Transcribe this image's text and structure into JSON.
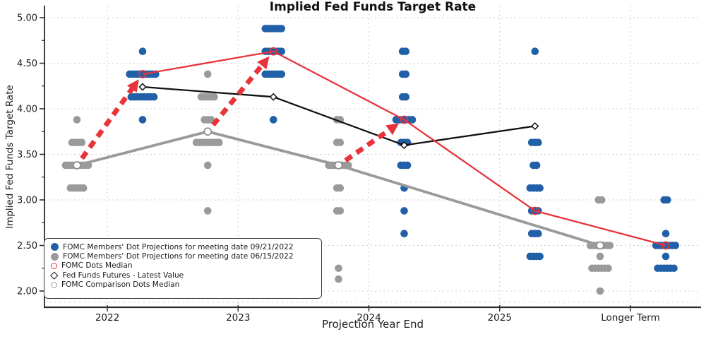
{
  "title": "Implied Fed Funds Target Rate",
  "x_axis": {
    "label": "Projection Year End",
    "categories": [
      "2022",
      "2023",
      "2024",
      "2025",
      "Longer Term"
    ]
  },
  "y_axis": {
    "label": "Implied Fed Funds Target Rate",
    "tick_labels": [
      "5.00",
      "4.50",
      "4.00",
      "3.50",
      "3.00",
      "2.50",
      "2.00"
    ]
  },
  "colors": {
    "blue": "#2160a8",
    "gray": "#9a9a9a",
    "red": "#e8333a",
    "black": "#111111",
    "grid": "#cdcdcd",
    "spine": "#2b2b2b",
    "text": "#1a1a1a"
  },
  "legend": [
    {
      "label": "FOMC Members' Dot Projections for meeting date 09/21/2022",
      "marker": "filled-circle",
      "color": "#2160a8"
    },
    {
      "label": "FOMC Members' Dot Projections for meeting date 06/15/2022",
      "marker": "filled-circle",
      "color": "#9a9a9a"
    },
    {
      "label": "FOMC Dots Median",
      "marker": "open-circle",
      "color": "#e8333a"
    },
    {
      "label": "Fed Funds Futures - Latest Value",
      "marker": "open-diamond",
      "color": "#111111"
    },
    {
      "label": "FOMC Comparison Dots Median",
      "marker": "open-circle",
      "color": "#9a9a9a"
    }
  ],
  "chart_data": {
    "type": "scatter",
    "title": "Implied Fed Funds Target Rate",
    "xlabel": "Projection Year End",
    "ylabel": "Implied Fed Funds Target Rate",
    "categories": [
      "2022",
      "2023",
      "2024",
      "2025",
      "Longer Term"
    ],
    "ylim": [
      1.82,
      5.12
    ],
    "yticks": [
      5.0,
      4.5,
      4.0,
      3.5,
      3.0,
      2.5,
      2.0
    ],
    "yticks_minor": [
      4.75,
      4.25,
      3.75,
      3.25,
      2.75,
      2.25
    ],
    "grid": true,
    "legend_position": "lower-left",
    "series": [
      {
        "name": "FOMC Members' Dot Projections for meeting date 09/21/2022",
        "type": "dot-cluster",
        "color": "#2160a8",
        "dx": 50,
        "clusters": {
          "2022": [
            [
              4.63,
              1
            ],
            [
              4.38,
              9
            ],
            [
              4.13,
              8
            ],
            [
              3.88,
              1
            ]
          ],
          "2023": [
            [
              4.88,
              6
            ],
            [
              4.63,
              6
            ],
            [
              4.38,
              6
            ],
            [
              3.88,
              1
            ]
          ],
          "2024": [
            [
              4.63,
              2
            ],
            [
              4.38,
              2
            ],
            [
              4.13,
              2
            ],
            [
              3.88,
              6
            ],
            [
              3.63,
              3
            ],
            [
              3.38,
              3
            ],
            [
              3.13,
              1
            ],
            [
              2.88,
              1
            ],
            [
              2.63,
              1
            ]
          ],
          "2025": [
            [
              4.63,
              1
            ],
            [
              3.63,
              3
            ],
            [
              3.38,
              2
            ],
            [
              3.13,
              4
            ],
            [
              2.88,
              3
            ],
            [
              2.63,
              3
            ],
            [
              2.38,
              4
            ]
          ],
          "Longer Term": [
            [
              3.0,
              2
            ],
            [
              2.63,
              1
            ],
            [
              2.5,
              7
            ],
            [
              2.38,
              1
            ],
            [
              2.25,
              6
            ]
          ]
        }
      },
      {
        "name": "FOMC Members' Dot Projections for meeting date 06/15/2022",
        "type": "dot-cluster",
        "color": "#9a9a9a",
        "dx": -43,
        "clusters": {
          "2022": [
            [
              3.88,
              1
            ],
            [
              3.63,
              4
            ],
            [
              3.38,
              8
            ],
            [
              3.13,
              5
            ]
          ],
          "2023": [
            [
              4.38,
              1
            ],
            [
              4.13,
              5
            ],
            [
              3.88,
              3
            ],
            [
              3.63,
              8
            ],
            [
              3.38,
              1
            ],
            [
              2.88,
              1
            ]
          ],
          "2024": [
            [
              3.88,
              2
            ],
            [
              3.63,
              2
            ],
            [
              3.38,
              7
            ],
            [
              3.13,
              2
            ],
            [
              2.88,
              2
            ],
            [
              2.25,
              1
            ],
            [
              2.13,
              1
            ]
          ],
          "Longer Term": [
            [
              3.0,
              2
            ],
            [
              2.5,
              7
            ],
            [
              2.38,
              1
            ],
            [
              2.25,
              6
            ],
            [
              2.0,
              1
            ]
          ]
        }
      },
      {
        "name": "FOMC Dots Median",
        "type": "line",
        "color": "#e8333a",
        "marker": "open-circle",
        "dx": 50,
        "width": 2.3,
        "points": [
          [
            "2022",
            4.38
          ],
          [
            "2023",
            4.63
          ],
          [
            "2024",
            3.88
          ],
          [
            "2025",
            2.88
          ],
          [
            "Longer Term",
            2.5
          ]
        ]
      },
      {
        "name": "Fed Funds Futures - Latest Value",
        "type": "line",
        "color": "#111111",
        "marker": "open-diamond",
        "dx": 50,
        "width": 2.3,
        "points": [
          [
            "2022",
            4.24
          ],
          [
            "2023",
            4.13
          ],
          [
            "2024",
            3.6
          ],
          [
            "2025",
            3.81
          ]
        ]
      },
      {
        "name": "FOMC Comparison Dots Median",
        "type": "line",
        "color": "#9a9a9a",
        "marker": "open-circle-filled",
        "dx": -43,
        "width": 3.8,
        "points": [
          [
            "2022",
            3.38
          ],
          [
            "2023",
            3.75
          ],
          [
            "2024",
            3.38
          ],
          [
            "Longer Term",
            2.5
          ]
        ]
      }
    ],
    "arrows": [
      {
        "category": "2022",
        "from_value": 3.38,
        "to_value": 4.38
      },
      {
        "category": "2023",
        "from_value": 3.75,
        "to_value": 4.63
      },
      {
        "category": "2024",
        "from_value": 3.38,
        "to_value": 3.88
      }
    ],
    "arrow_color": "#e8333a"
  }
}
